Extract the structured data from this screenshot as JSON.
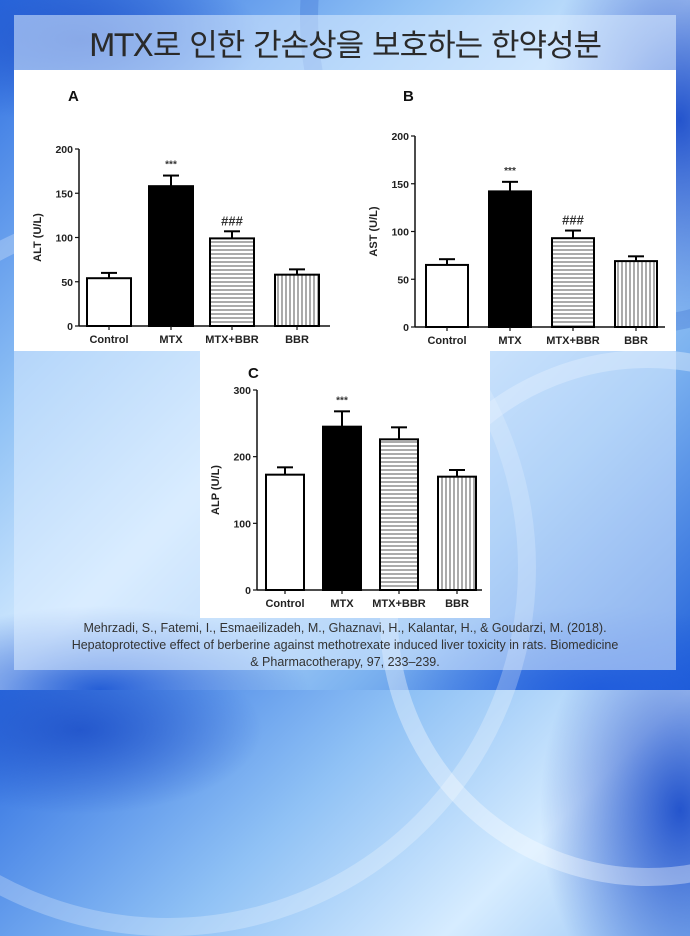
{
  "title": "MTX로 인한 간손상을 보호하는 한약성분",
  "citation": {
    "line1": "Mehrzadi, S., Fatemi, I., Esmaeilizadeh, M., Ghaznavi, H., Kalantar, H., & Goudarzi, M. (2018).",
    "line2": "Hepatoprotective effect of berberine against methotrexate induced liver toxicity in rats. Biomedicine",
    "line3": "& Pharmacotherapy, 97, 233–239."
  },
  "chart_data": [
    {
      "panel": "A",
      "type": "bar",
      "ylabel": "ALT (U/L)",
      "ylim": [
        0,
        200
      ],
      "yticks": [
        0,
        50,
        100,
        150,
        200
      ],
      "categories": [
        "Control",
        "MTX",
        "MTX+BBR",
        "BBR"
      ],
      "values": [
        54,
        158,
        99,
        58
      ],
      "errors": [
        6,
        12,
        8,
        6
      ],
      "annotations": [
        "",
        "***",
        "###",
        ""
      ],
      "patterns": [
        "white",
        "black",
        "horizontal",
        "vertical"
      ]
    },
    {
      "panel": "B",
      "type": "bar",
      "ylabel": "AST (U/L)",
      "ylim": [
        0,
        200
      ],
      "yticks": [
        0,
        50,
        100,
        150,
        200
      ],
      "categories": [
        "Control",
        "MTX",
        "MTX+BBR",
        "BBR"
      ],
      "values": [
        65,
        142,
        93,
        69
      ],
      "errors": [
        6,
        10,
        8,
        5
      ],
      "annotations": [
        "",
        "***",
        "###",
        ""
      ],
      "patterns": [
        "white",
        "black",
        "horizontal",
        "vertical"
      ]
    },
    {
      "panel": "C",
      "type": "bar",
      "ylabel": "ALP (U/L)",
      "ylim": [
        0,
        300
      ],
      "yticks": [
        0,
        100,
        200,
        300
      ],
      "categories": [
        "Control",
        "MTX",
        "MTX+BBR",
        "BBR"
      ],
      "values": [
        173,
        245,
        226,
        170
      ],
      "errors": [
        11,
        23,
        18,
        10
      ],
      "annotations": [
        "",
        "***",
        "",
        ""
      ],
      "patterns": [
        "white",
        "black",
        "horizontal",
        "vertical"
      ]
    }
  ]
}
